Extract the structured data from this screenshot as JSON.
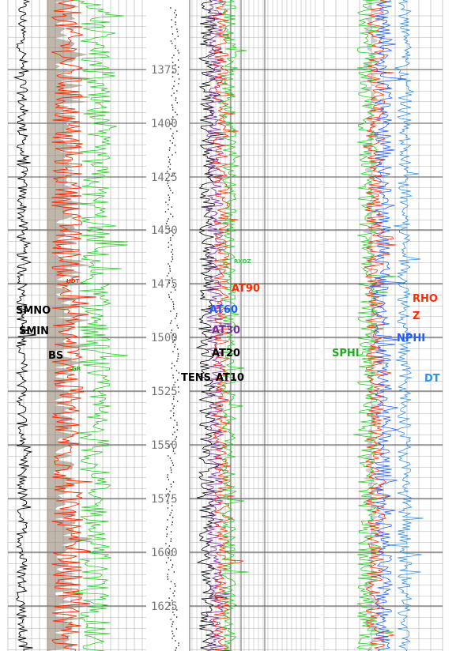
{
  "chart_data": {
    "type": "line",
    "title": "",
    "orientation": "vertical depth track log",
    "ylabel": "",
    "depth_range": [
      13510,
      13800
    ],
    "depth_ticks": [
      13750,
      14000,
      14250,
      14500,
      14750,
      15000,
      15250,
      15500,
      15750,
      16000,
      16250
    ],
    "depth_tick_labels": [
      "1375",
      "1400",
      "1425",
      "1450",
      "1475",
      "1500",
      "1525",
      "1550",
      "1575",
      "1600",
      "1625"
    ],
    "tracks": [
      {
        "name": "track-1",
        "curves": [
          "SMNO",
          "SMIN",
          "BS",
          "GR"
        ],
        "grid": "linear"
      },
      {
        "name": "depth-track",
        "curves": [
          "TENS"
        ],
        "grid": "none"
      },
      {
        "name": "resistivity-track",
        "curves": [
          "AT10",
          "AT20",
          "AT30",
          "AT60",
          "AT90",
          "RXOZ"
        ],
        "grid": "log"
      },
      {
        "name": "porosity-track",
        "curves": [
          "SPHI",
          "NPHI",
          "RHO",
          "Z",
          "DT"
        ],
        "grid": "linear"
      }
    ],
    "labels": {
      "smno": "SMNO",
      "smin": "SMIN",
      "bs": "BS",
      "gr": "GR",
      "rxoz": "RXOZ",
      "hdt": "HDT",
      "tens": "TENS",
      "at10": "AT10",
      "at20": "AT20",
      "at30": "AT30",
      "at60": "AT60",
      "at90": "AT90",
      "sphi": "SPHI",
      "nphi": "NPHI",
      "rho": "RHO",
      "z": "Z",
      "dt": "DT"
    },
    "colors": {
      "black": "#000000",
      "red": "#ff2a00",
      "green": "#22cc22",
      "blue": "#1f5bff",
      "lightblue": "#2f8fe8",
      "purple": "#7a2aa0",
      "shade": "#8a7a68",
      "grid": "#9a9a9a",
      "depth_text": "#7a7a7a"
    }
  }
}
